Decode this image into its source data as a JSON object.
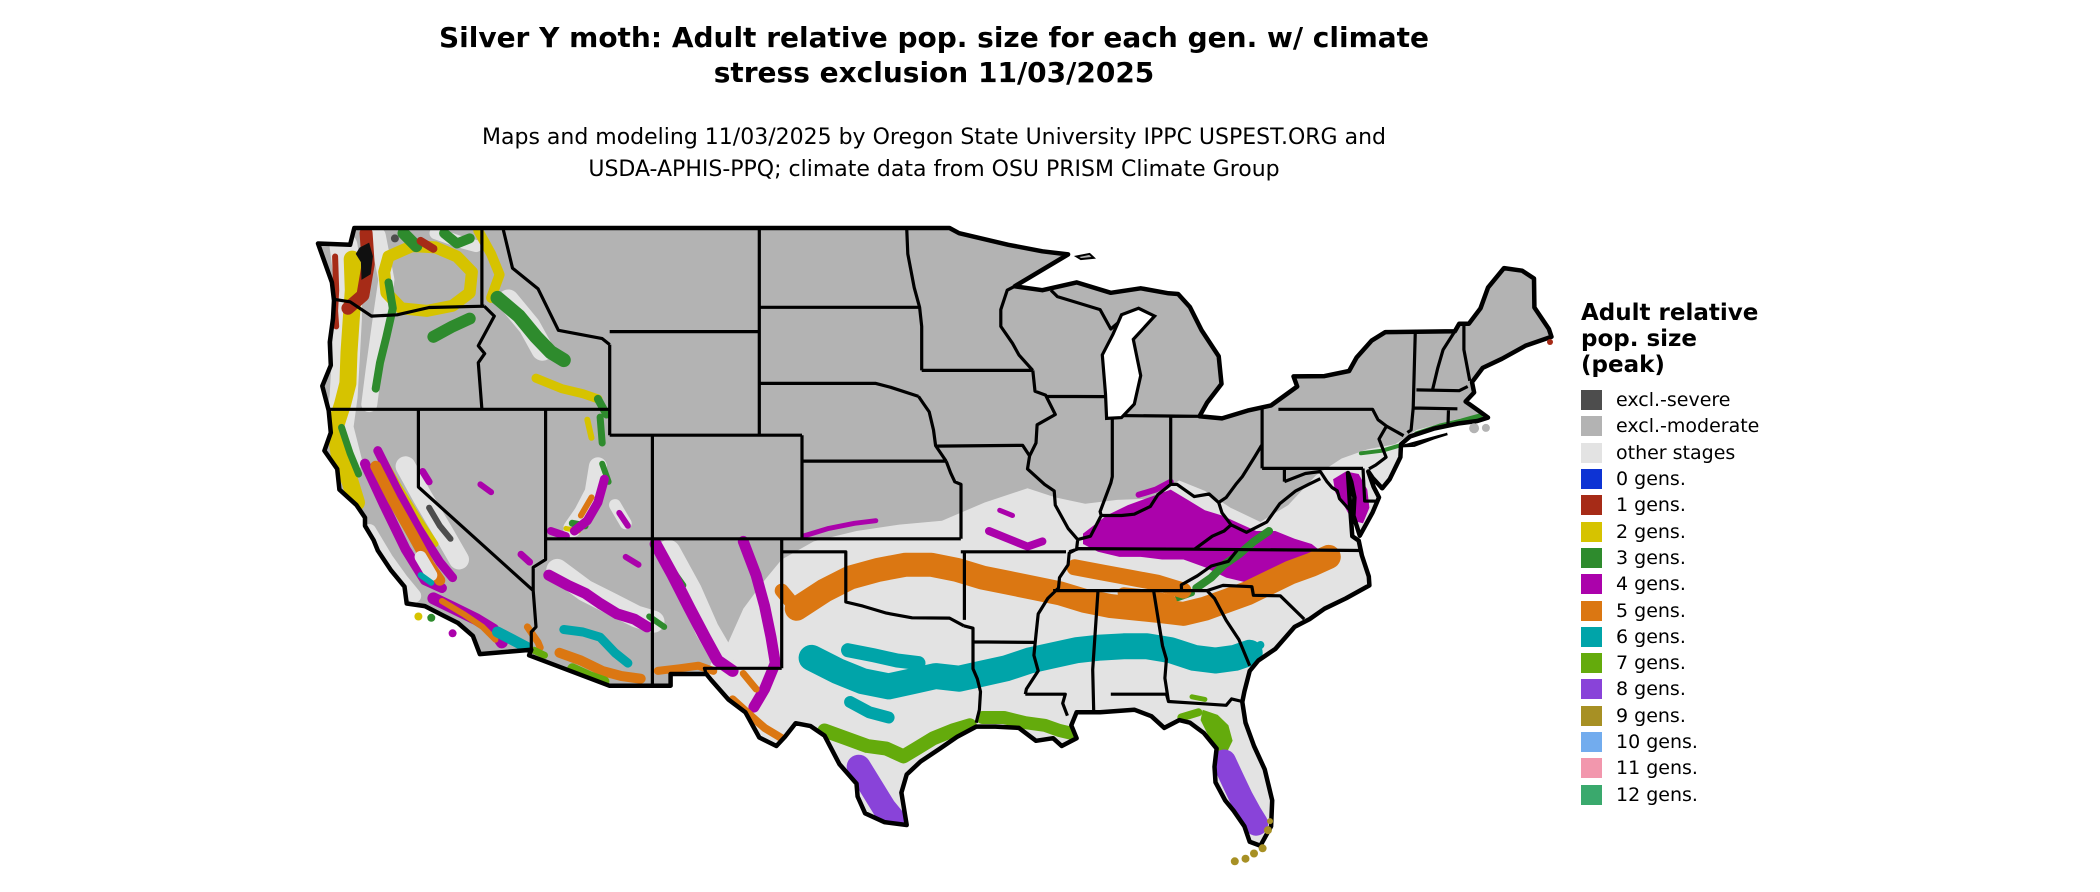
{
  "title": {
    "line1": "Silver Y moth: Adult relative pop. size for each gen. w/ climate",
    "line2": "stress exclusion 11/03/2025"
  },
  "subtitle": {
    "line1": "Maps and modeling 11/03/2025 by Oregon State University IPPC USPEST.ORG and",
    "line2": "USDA-APHIS-PPQ; climate data from OSU PRISM Climate Group"
  },
  "legend": {
    "title_lines": [
      "Adult relative",
      "pop. size",
      "(peak)"
    ],
    "items": [
      {
        "key": "excl_severe",
        "label": "excl.-severe",
        "color": "#4d4d4d"
      },
      {
        "key": "excl_moderate",
        "label": "excl.-moderate",
        "color": "#b3b3b3"
      },
      {
        "key": "other_stages",
        "label": "other stages",
        "color": "#e3e3e3"
      },
      {
        "key": "gens0",
        "label": "0 gens.",
        "color": "#0d33d4"
      },
      {
        "key": "gens1",
        "label": "1 gens.",
        "color": "#a62b17"
      },
      {
        "key": "gens2",
        "label": "2 gens.",
        "color": "#d6c300"
      },
      {
        "key": "gens3",
        "label": "3 gens.",
        "color": "#2e8b2d"
      },
      {
        "key": "gens4",
        "label": "4 gens.",
        "color": "#ab02ab"
      },
      {
        "key": "gens5",
        "label": "5 gens.",
        "color": "#db7712"
      },
      {
        "key": "gens6",
        "label": "6 gens.",
        "color": "#00a4a9"
      },
      {
        "key": "gens7",
        "label": "7 gens.",
        "color": "#64ab0c"
      },
      {
        "key": "gens8",
        "label": "8 gens.",
        "color": "#8943d9"
      },
      {
        "key": "gens9",
        "label": "9 gens.",
        "color": "#a79024"
      },
      {
        "key": "gens10",
        "label": "10 gens.",
        "color": "#72acee"
      },
      {
        "key": "gens11",
        "label": "11 gens.",
        "color": "#f297ad"
      },
      {
        "key": "gens12",
        "label": "12 gens.",
        "color": "#3aa96d"
      }
    ]
  },
  "map": {
    "land_color": "#b3b3b3",
    "background_color": "#ffffff",
    "state_border_color": "#000000",
    "inland_water_color": "#101010"
  }
}
